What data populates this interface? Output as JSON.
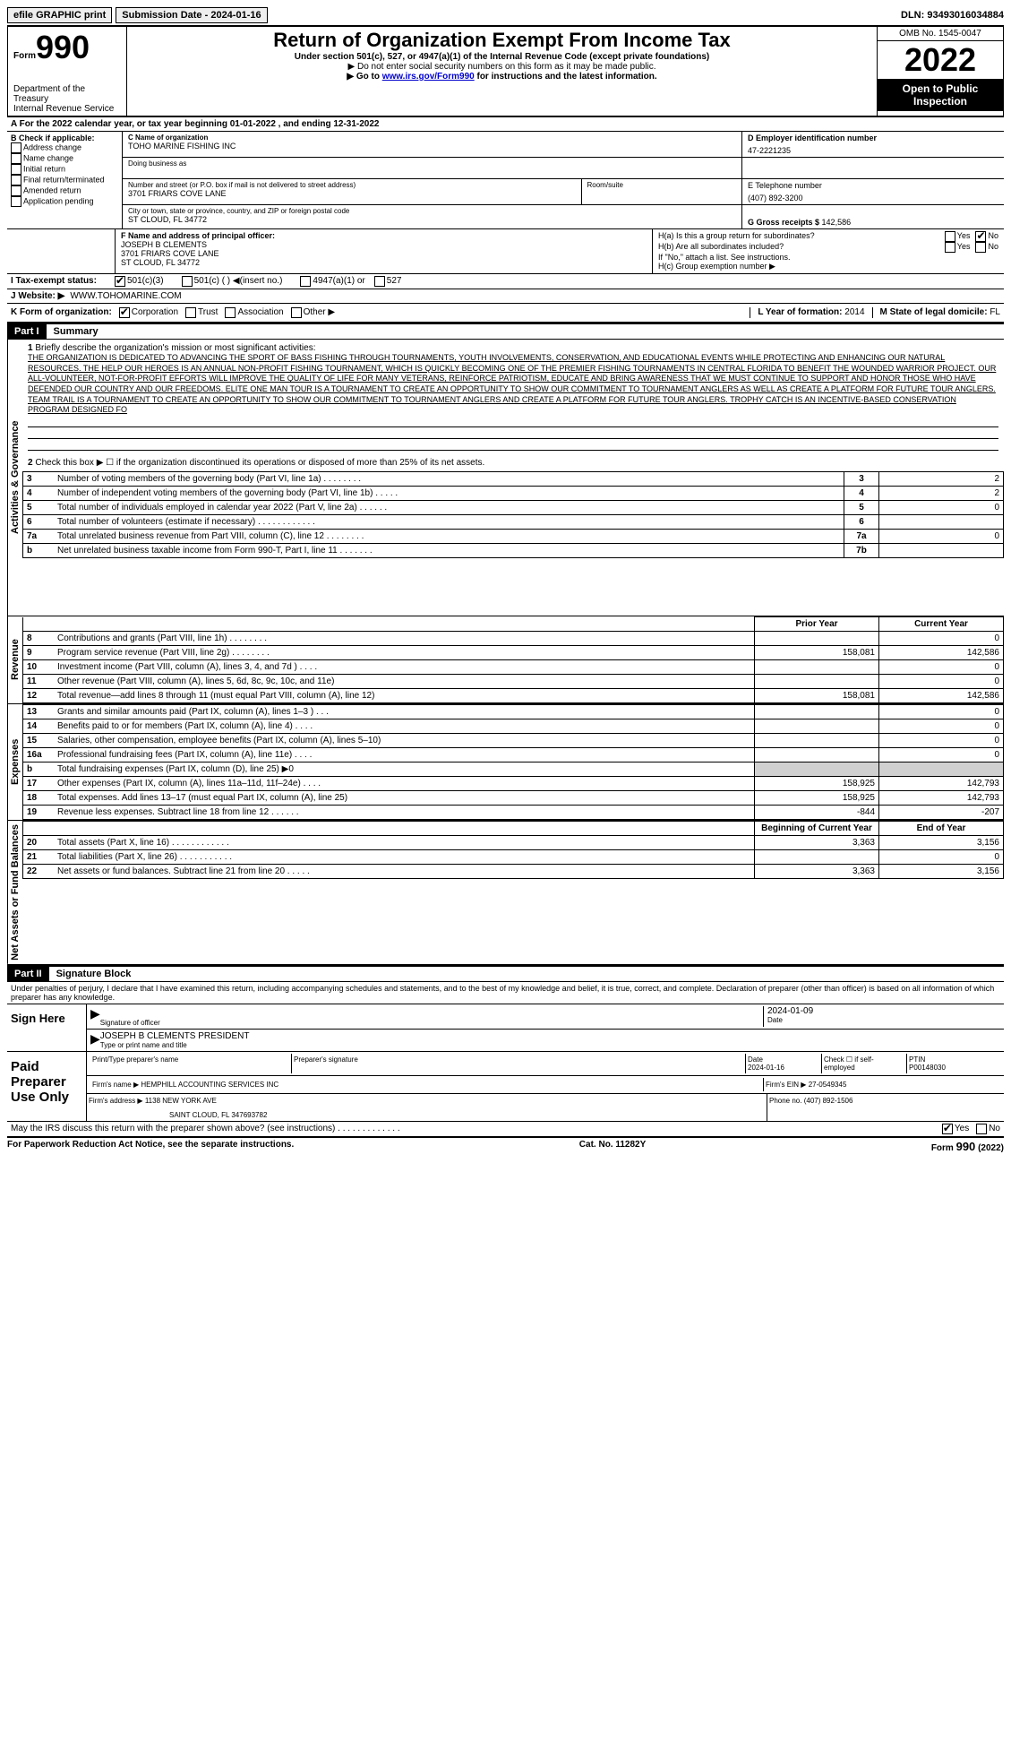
{
  "top": {
    "efile": "efile GRAPHIC print",
    "submission_label": "Submission Date - ",
    "submission_date": "2024-01-16",
    "dln_label": "DLN: ",
    "dln": "93493016034884"
  },
  "header": {
    "form_word": "Form",
    "form_num": "990",
    "dept": "Department of the Treasury",
    "irs": "Internal Revenue Service",
    "title": "Return of Organization Exempt From Income Tax",
    "subtitle": "Under section 501(c), 527, or 4947(a)(1) of the Internal Revenue Code (except private foundations)",
    "note1": "▶ Do not enter social security numbers on this form as it may be made public.",
    "note2_pre": "▶ Go to ",
    "note2_link": "www.irs.gov/Form990",
    "note2_post": " for instructions and the latest information.",
    "omb": "OMB No. 1545-0047",
    "year": "2022",
    "open": "Open to Public Inspection"
  },
  "A": {
    "text": "A For the 2022 calendar year, or tax year beginning ",
    "begin": "01-01-2022",
    "mid": "   , and ending ",
    "end": "12-31-2022"
  },
  "B": {
    "label": "B Check if applicable:",
    "items": [
      "Address change",
      "Name change",
      "Initial return",
      "Final return/terminated",
      "Amended return",
      "Application pending"
    ]
  },
  "C": {
    "name_label": "C Name of organization",
    "name": "TOHO MARINE FISHING INC",
    "dba_label": "Doing business as",
    "addr_label": "Number and street (or P.O. box if mail is not delivered to street address)",
    "addr": "3701 FRIARS COVE LANE",
    "room_label": "Room/suite",
    "city_label": "City or town, state or province, country, and ZIP or foreign postal code",
    "city": "ST CLOUD, FL  34772"
  },
  "D": {
    "label": "D Employer identification number",
    "value": "47-2221235"
  },
  "E": {
    "label": "E Telephone number",
    "value": "(407) 892-3200"
  },
  "G": {
    "label": "G Gross receipts $ ",
    "value": "142,586"
  },
  "F": {
    "label": "F  Name and address of principal officer:",
    "name": "JOSEPH B CLEMENTS",
    "addr1": "3701 FRIARS COVE LANE",
    "addr2": "ST CLOUD, FL  34772"
  },
  "H": {
    "a_label": "H(a)  Is this a group return for subordinates?",
    "b_label": "H(b)  Are all subordinates included?",
    "b_note": "If \"No,\" attach a list. See instructions.",
    "c_label": "H(c)  Group exemption number ▶",
    "yes": "Yes",
    "no": "No"
  },
  "I": {
    "label": "I   Tax-exempt status:",
    "opt1": "501(c)(3)",
    "opt2": "501(c) (  ) ◀(insert no.)",
    "opt3": "4947(a)(1) or",
    "opt4": "527"
  },
  "J": {
    "label": "J   Website: ▶",
    "value": "WWW.TOHOMARINE.COM"
  },
  "K": {
    "label": "K Form of organization:",
    "opts": [
      "Corporation",
      "Trust",
      "Association",
      "Other ▶"
    ]
  },
  "L": {
    "label": "L Year of formation: ",
    "value": "2014"
  },
  "M": {
    "label": "M State of legal domicile: ",
    "value": "FL"
  },
  "part1": {
    "header": "Part I",
    "title": "Summary",
    "l1_label": "Briefly describe the organization's mission or most significant activities:",
    "mission": "THE ORGANIZATION IS DEDICATED TO ADVANCING THE SPORT OF BASS FISHING THROUGH TOURNAMENTS, YOUTH INVOLVEMENTS, CONSERVATION, AND EDUCATIONAL EVENTS WHILE PROTECTING AND ENHANCING OUR NATURAL RESOURCES. THE HELP OUR HEROES IS AN ANNUAL NON-PROFIT FISHING TOURNAMENT, WHICH IS QUICKLY BECOMING ONE OF THE PREMIER FISHING TOURNAMENTS IN CENTRAL FLORIDA TO BENEFIT THE WOUNDED WARRIOR PROJECT. OUR ALL-VOLUNTEER, NOT-FOR-PROFIT EFFORTS WILL IMPROVE THE QUALITY OF LIFE FOR MANY VETERANS, REINFORCE PATRIOTISM, EDUCATE AND BRING AWARENESS THAT WE MUST CONTINUE TO SUPPORT AND HONOR THOSE WHO HAVE DEFENDED OUR COUNTRY AND OUR FREEDOMS. ELITE ONE MAN TOUR IS A TOURNAMENT TO CREATE AN OPPORTUNITY TO SHOW OUR COMMITMENT TO TOURNAMENT ANGLERS AS WELL AS CREATE A PLATFORM FOR FUTURE TOUR ANGLERS. TEAM TRAIL IS A TOURNAMENT TO CREATE AN OPPORTUNITY TO SHOW OUR COMMITMENT TO TOURNAMENT ANGLERS AND CREATE A PLATFORM FOR FUTURE TOUR ANGLERS. TROPHY CATCH IS AN INCENTIVE-BASED CONSERVATION PROGRAM DESIGNED FO",
    "l2": "Check this box ▶ ☐ if the organization discontinued its operations or disposed of more than 25% of its net assets.",
    "vert1": "Activities & Governance",
    "vert2": "Revenue",
    "vert3": "Expenses",
    "vert4": "Net Assets or Fund Balances",
    "rows_gov": [
      {
        "n": "3",
        "d": "Number of voting members of the governing body (Part VI, line 1a)   .    .    .    .    .    .    .    .",
        "box": "3",
        "v": "2"
      },
      {
        "n": "4",
        "d": "Number of independent voting members of the governing body (Part VI, line 1b)    .    .    .    .    .",
        "box": "4",
        "v": "2"
      },
      {
        "n": "5",
        "d": "Total number of individuals employed in calendar year 2022 (Part V, line 2a)   .    .    .    .    .    .",
        "box": "5",
        "v": "0"
      },
      {
        "n": "6",
        "d": "Total number of volunteers (estimate if necessary)    .    .    .    .    .    .    .    .    .    .    .    .",
        "box": "6",
        "v": ""
      },
      {
        "n": "7a",
        "d": "Total unrelated business revenue from Part VIII, column (C), line 12    .    .    .    .    .    .    .    .",
        "box": "7a",
        "v": "0"
      },
      {
        "n": "b",
        "d": "Net unrelated business taxable income from Form 990-T, Part I, line 11   .    .    .    .    .    .    .",
        "box": "7b",
        "v": ""
      }
    ],
    "col_prior": "Prior Year",
    "col_current": "Current Year",
    "rows_rev": [
      {
        "n": "8",
        "d": "Contributions and grants (Part VIII, line 1h)    .    .    .    .    .    .    .    .",
        "p": "",
        "c": "0"
      },
      {
        "n": "9",
        "d": "Program service revenue (Part VIII, line 2g)    .    .    .    .    .    .    .    .",
        "p": "158,081",
        "c": "142,586"
      },
      {
        "n": "10",
        "d": "Investment income (Part VIII, column (A), lines 3, 4, and 7d )    .    .    .    .",
        "p": "",
        "c": "0"
      },
      {
        "n": "11",
        "d": "Other revenue (Part VIII, column (A), lines 5, 6d, 8c, 9c, 10c, and 11e)",
        "p": "",
        "c": "0"
      },
      {
        "n": "12",
        "d": "Total revenue—add lines 8 through 11 (must equal Part VIII, column (A), line 12)",
        "p": "158,081",
        "c": "142,586"
      }
    ],
    "rows_exp": [
      {
        "n": "13",
        "d": "Grants and similar amounts paid (Part IX, column (A), lines 1–3 )   .    .    .",
        "p": "",
        "c": "0"
      },
      {
        "n": "14",
        "d": "Benefits paid to or for members (Part IX, column (A), line 4)   .    .    .    .",
        "p": "",
        "c": "0"
      },
      {
        "n": "15",
        "d": "Salaries, other compensation, employee benefits (Part IX, column (A), lines 5–10)",
        "p": "",
        "c": "0"
      },
      {
        "n": "16a",
        "d": "Professional fundraising fees (Part IX, column (A), line 11e)   .    .    .    .",
        "p": "",
        "c": "0"
      },
      {
        "n": "b",
        "d": "Total fundraising expenses (Part IX, column (D), line 25) ▶0",
        "p": "shaded",
        "c": "shaded"
      },
      {
        "n": "17",
        "d": "Other expenses (Part IX, column (A), lines 11a–11d, 11f–24e)    .    .    .    .",
        "p": "158,925",
        "c": "142,793"
      },
      {
        "n": "18",
        "d": "Total expenses. Add lines 13–17 (must equal Part IX, column (A), line 25)",
        "p": "158,925",
        "c": "142,793"
      },
      {
        "n": "19",
        "d": "Revenue less expenses. Subtract line 18 from line 12   .    .    .    .    .    .",
        "p": "-844",
        "c": "-207"
      }
    ],
    "col_begin": "Beginning of Current Year",
    "col_end": "End of Year",
    "rows_net": [
      {
        "n": "20",
        "d": "Total assets (Part X, line 16)   .    .    .    .    .    .    .    .    .    .    .    .",
        "p": "3,363",
        "c": "3,156"
      },
      {
        "n": "21",
        "d": "Total liabilities (Part X, line 26)   .    .    .    .    .    .    .    .    .    .    .",
        "p": "",
        "c": "0"
      },
      {
        "n": "22",
        "d": "Net assets or fund balances. Subtract line 21 from line 20   .    .    .    .    .",
        "p": "3,363",
        "c": "3,156"
      }
    ]
  },
  "part2": {
    "header": "Part II",
    "title": "Signature Block",
    "declaration": "Under penalties of perjury, I declare that I have examined this return, including accompanying schedules and statements, and to the best of my knowledge and belief, it is true, correct, and complete. Declaration of preparer (other than officer) is based on all information of which preparer has any knowledge.",
    "sign_here": "Sign Here",
    "sig_officer": "Signature of officer",
    "sig_date_label": "Date",
    "sig_date": "2024-01-09",
    "officer_name": "JOSEPH B CLEMENTS  PRESIDENT",
    "type_name": "Type or print name and title",
    "paid": "Paid Preparer Use Only",
    "print_name": "Print/Type preparer's name",
    "prep_sig": "Preparer's signature",
    "date_label": "Date",
    "date_val": "2024-01-16",
    "check_if": "Check ☐ if self-employed",
    "ptin_label": "PTIN",
    "ptin": "P00148030",
    "firm_name_label": "Firm's name     ▶ ",
    "firm_name": "HEMPHILL ACCOUNTING SERVICES INC",
    "firm_ein_label": "Firm's EIN ▶ ",
    "firm_ein": "27-0549345",
    "firm_addr_label": "Firm's address ▶ ",
    "firm_addr1": "1138 NEW YORK AVE",
    "firm_addr2": "SAINT CLOUD, FL  347693782",
    "phone_label": "Phone no. ",
    "phone": "(407) 892-1506",
    "may_discuss": "May the IRS discuss this return with the preparer shown above? (see instructions)    .    .    .    .    .    .    .    .    .    .    .    .    ."
  },
  "footer": {
    "left": "For Paperwork Reduction Act Notice, see the separate instructions.",
    "center": "Cat. No. 11282Y",
    "right": "Form 990 (2022)"
  }
}
